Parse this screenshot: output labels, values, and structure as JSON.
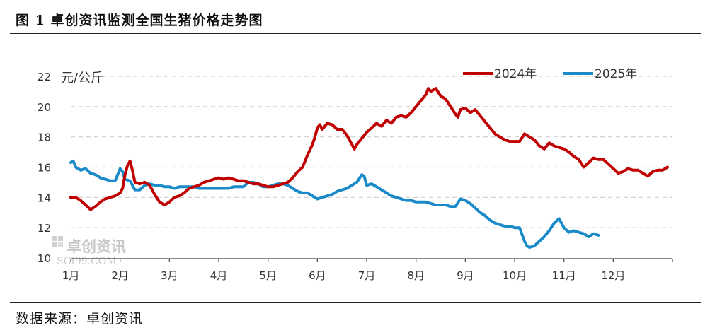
{
  "figure": {
    "title": "图 1  卓创资讯监测全国生猪价格走势图",
    "source": "数据来源：卓创资讯",
    "watermark": {
      "name": "卓创资讯",
      "url": "SCI99.COM"
    }
  },
  "colors": {
    "series_2024": "#c00000",
    "series_2025": "#1a8ac8",
    "grid": "#cfcfcf",
    "axis": "#444444"
  },
  "chart_data": {
    "type": "line",
    "title": "",
    "xlabel": "",
    "ylabel": "元/公斤",
    "ylim": [
      10,
      22
    ],
    "yticks": [
      10,
      12,
      14,
      16,
      18,
      20,
      22
    ],
    "xlim": [
      0,
      12.2
    ],
    "xticks": [
      {
        "x": 0,
        "label": "1月"
      },
      {
        "x": 1,
        "label": "2月"
      },
      {
        "x": 2,
        "label": "3月"
      },
      {
        "x": 3,
        "label": "4月"
      },
      {
        "x": 4,
        "label": "5月"
      },
      {
        "x": 5,
        "label": "6月"
      },
      {
        "x": 6,
        "label": "7月"
      },
      {
        "x": 7,
        "label": "8月"
      },
      {
        "x": 8,
        "label": "9月"
      },
      {
        "x": 9,
        "label": "10月"
      },
      {
        "x": 10,
        "label": "11月"
      },
      {
        "x": 11,
        "label": "12月"
      }
    ],
    "grid": "horizontal-dashed",
    "legend_position": "top-right",
    "series": [
      {
        "name": "2024年",
        "points": [
          [
            0.0,
            14.0
          ],
          [
            0.1,
            14.0
          ],
          [
            0.2,
            13.8
          ],
          [
            0.3,
            13.5
          ],
          [
            0.4,
            13.2
          ],
          [
            0.5,
            13.4
          ],
          [
            0.6,
            13.7
          ],
          [
            0.7,
            13.9
          ],
          [
            0.8,
            14.0
          ],
          [
            0.9,
            14.1
          ],
          [
            1.0,
            14.3
          ],
          [
            1.05,
            14.6
          ],
          [
            1.1,
            15.5
          ],
          [
            1.15,
            16.1
          ],
          [
            1.2,
            16.4
          ],
          [
            1.25,
            15.8
          ],
          [
            1.3,
            15.0
          ],
          [
            1.4,
            14.9
          ],
          [
            1.5,
            15.0
          ],
          [
            1.6,
            14.8
          ],
          [
            1.7,
            14.2
          ],
          [
            1.8,
            13.7
          ],
          [
            1.9,
            13.5
          ],
          [
            2.0,
            13.7
          ],
          [
            2.1,
            14.0
          ],
          [
            2.2,
            14.1
          ],
          [
            2.3,
            14.3
          ],
          [
            2.4,
            14.6
          ],
          [
            2.5,
            14.7
          ],
          [
            2.6,
            14.8
          ],
          [
            2.7,
            15.0
          ],
          [
            2.8,
            15.1
          ],
          [
            2.9,
            15.2
          ],
          [
            3.0,
            15.3
          ],
          [
            3.1,
            15.2
          ],
          [
            3.2,
            15.3
          ],
          [
            3.3,
            15.2
          ],
          [
            3.4,
            15.1
          ],
          [
            3.5,
            15.1
          ],
          [
            3.6,
            15.0
          ],
          [
            3.7,
            14.9
          ],
          [
            3.8,
            14.9
          ],
          [
            3.9,
            14.8
          ],
          [
            4.0,
            14.7
          ],
          [
            4.1,
            14.7
          ],
          [
            4.2,
            14.8
          ],
          [
            4.3,
            14.9
          ],
          [
            4.4,
            15.0
          ],
          [
            4.5,
            15.3
          ],
          [
            4.6,
            15.7
          ],
          [
            4.7,
            16.0
          ],
          [
            4.8,
            16.8
          ],
          [
            4.9,
            17.5
          ],
          [
            4.95,
            18.0
          ],
          [
            5.0,
            18.6
          ],
          [
            5.05,
            18.8
          ],
          [
            5.1,
            18.5
          ],
          [
            5.2,
            18.9
          ],
          [
            5.3,
            18.8
          ],
          [
            5.4,
            18.5
          ],
          [
            5.5,
            18.5
          ],
          [
            5.6,
            18.1
          ],
          [
            5.7,
            17.5
          ],
          [
            5.75,
            17.2
          ],
          [
            5.8,
            17.5
          ],
          [
            5.9,
            17.9
          ],
          [
            6.0,
            18.3
          ],
          [
            6.1,
            18.6
          ],
          [
            6.2,
            18.9
          ],
          [
            6.3,
            18.7
          ],
          [
            6.4,
            19.1
          ],
          [
            6.5,
            18.9
          ],
          [
            6.6,
            19.3
          ],
          [
            6.7,
            19.4
          ],
          [
            6.8,
            19.3
          ],
          [
            6.9,
            19.6
          ],
          [
            7.0,
            20.0
          ],
          [
            7.1,
            20.4
          ],
          [
            7.2,
            20.8
          ],
          [
            7.25,
            21.2
          ],
          [
            7.3,
            21.0
          ],
          [
            7.4,
            21.2
          ],
          [
            7.5,
            20.7
          ],
          [
            7.6,
            20.5
          ],
          [
            7.7,
            20.0
          ],
          [
            7.8,
            19.5
          ],
          [
            7.85,
            19.3
          ],
          [
            7.9,
            19.8
          ],
          [
            8.0,
            19.9
          ],
          [
            8.1,
            19.6
          ],
          [
            8.2,
            19.8
          ],
          [
            8.3,
            19.4
          ],
          [
            8.4,
            19.0
          ],
          [
            8.5,
            18.6
          ],
          [
            8.6,
            18.2
          ],
          [
            8.7,
            18.0
          ],
          [
            8.8,
            17.8
          ],
          [
            8.9,
            17.7
          ],
          [
            9.0,
            17.7
          ],
          [
            9.1,
            17.7
          ],
          [
            9.2,
            18.2
          ],
          [
            9.3,
            18.0
          ],
          [
            9.4,
            17.8
          ],
          [
            9.5,
            17.4
          ],
          [
            9.6,
            17.2
          ],
          [
            9.7,
            17.6
          ],
          [
            9.8,
            17.4
          ],
          [
            9.9,
            17.3
          ],
          [
            10.0,
            17.2
          ],
          [
            10.1,
            17.0
          ],
          [
            10.2,
            16.7
          ],
          [
            10.3,
            16.5
          ],
          [
            10.4,
            16.0
          ],
          [
            10.5,
            16.3
          ],
          [
            10.6,
            16.6
          ],
          [
            10.7,
            16.5
          ],
          [
            10.8,
            16.5
          ],
          [
            10.9,
            16.2
          ],
          [
            11.0,
            15.9
          ],
          [
            11.1,
            15.6
          ],
          [
            11.2,
            15.7
          ],
          [
            11.3,
            15.9
          ],
          [
            11.4,
            15.8
          ],
          [
            11.5,
            15.8
          ],
          [
            11.6,
            15.6
          ],
          [
            11.7,
            15.4
          ],
          [
            11.8,
            15.7
          ],
          [
            11.9,
            15.8
          ],
          [
            12.0,
            15.8
          ],
          [
            12.1,
            16.0
          ]
        ]
      },
      {
        "name": "2025年",
        "points": [
          [
            0.0,
            16.3
          ],
          [
            0.05,
            16.4
          ],
          [
            0.1,
            16.0
          ],
          [
            0.2,
            15.8
          ],
          [
            0.3,
            15.9
          ],
          [
            0.4,
            15.6
          ],
          [
            0.5,
            15.5
          ],
          [
            0.6,
            15.3
          ],
          [
            0.7,
            15.2
          ],
          [
            0.8,
            15.1
          ],
          [
            0.9,
            15.1
          ],
          [
            1.0,
            15.9
          ],
          [
            1.05,
            15.7
          ],
          [
            1.1,
            15.2
          ],
          [
            1.2,
            15.1
          ],
          [
            1.3,
            14.5
          ],
          [
            1.4,
            14.5
          ],
          [
            1.5,
            14.8
          ],
          [
            1.6,
            14.9
          ],
          [
            1.7,
            14.8
          ],
          [
            1.8,
            14.8
          ],
          [
            1.9,
            14.7
          ],
          [
            2.0,
            14.7
          ],
          [
            2.1,
            14.6
          ],
          [
            2.2,
            14.7
          ],
          [
            2.3,
            14.7
          ],
          [
            2.4,
            14.7
          ],
          [
            2.5,
            14.7
          ],
          [
            2.6,
            14.6
          ],
          [
            2.7,
            14.6
          ],
          [
            2.8,
            14.6
          ],
          [
            2.9,
            14.6
          ],
          [
            3.0,
            14.6
          ],
          [
            3.1,
            14.6
          ],
          [
            3.2,
            14.6
          ],
          [
            3.3,
            14.7
          ],
          [
            3.4,
            14.7
          ],
          [
            3.5,
            14.7
          ],
          [
            3.6,
            15.0
          ],
          [
            3.7,
            15.0
          ],
          [
            3.8,
            14.9
          ],
          [
            3.9,
            14.7
          ],
          [
            4.0,
            14.7
          ],
          [
            4.1,
            14.8
          ],
          [
            4.2,
            14.9
          ],
          [
            4.3,
            14.9
          ],
          [
            4.4,
            14.8
          ],
          [
            4.5,
            14.6
          ],
          [
            4.6,
            14.4
          ],
          [
            4.7,
            14.3
          ],
          [
            4.8,
            14.3
          ],
          [
            4.9,
            14.1
          ],
          [
            5.0,
            13.9
          ],
          [
            5.1,
            14.0
          ],
          [
            5.2,
            14.1
          ],
          [
            5.3,
            14.2
          ],
          [
            5.4,
            14.4
          ],
          [
            5.5,
            14.5
          ],
          [
            5.6,
            14.6
          ],
          [
            5.7,
            14.8
          ],
          [
            5.8,
            15.0
          ],
          [
            5.9,
            15.5
          ],
          [
            5.95,
            15.4
          ],
          [
            6.0,
            14.8
          ],
          [
            6.1,
            14.9
          ],
          [
            6.2,
            14.7
          ],
          [
            6.3,
            14.5
          ],
          [
            6.4,
            14.3
          ],
          [
            6.5,
            14.1
          ],
          [
            6.6,
            14.0
          ],
          [
            6.7,
            13.9
          ],
          [
            6.8,
            13.8
          ],
          [
            6.9,
            13.8
          ],
          [
            7.0,
            13.7
          ],
          [
            7.1,
            13.7
          ],
          [
            7.2,
            13.7
          ],
          [
            7.3,
            13.6
          ],
          [
            7.4,
            13.5
          ],
          [
            7.5,
            13.5
          ],
          [
            7.6,
            13.5
          ],
          [
            7.7,
            13.4
          ],
          [
            7.8,
            13.4
          ],
          [
            7.9,
            13.9
          ],
          [
            8.0,
            13.8
          ],
          [
            8.1,
            13.6
          ],
          [
            8.2,
            13.3
          ],
          [
            8.3,
            13.0
          ],
          [
            8.4,
            12.8
          ],
          [
            8.5,
            12.5
          ],
          [
            8.6,
            12.3
          ],
          [
            8.7,
            12.2
          ],
          [
            8.8,
            12.1
          ],
          [
            8.9,
            12.1
          ],
          [
            9.0,
            12.0
          ],
          [
            9.1,
            12.0
          ],
          [
            9.2,
            11.1
          ],
          [
            9.25,
            10.8
          ],
          [
            9.3,
            10.7
          ],
          [
            9.4,
            10.8
          ],
          [
            9.5,
            11.1
          ],
          [
            9.6,
            11.4
          ],
          [
            9.7,
            11.8
          ],
          [
            9.8,
            12.3
          ],
          [
            9.9,
            12.6
          ],
          [
            10.0,
            12.0
          ],
          [
            10.1,
            11.7
          ],
          [
            10.2,
            11.8
          ],
          [
            10.3,
            11.7
          ],
          [
            10.4,
            11.6
          ],
          [
            10.5,
            11.4
          ],
          [
            10.6,
            11.6
          ],
          [
            10.7,
            11.5
          ]
        ]
      }
    ]
  }
}
